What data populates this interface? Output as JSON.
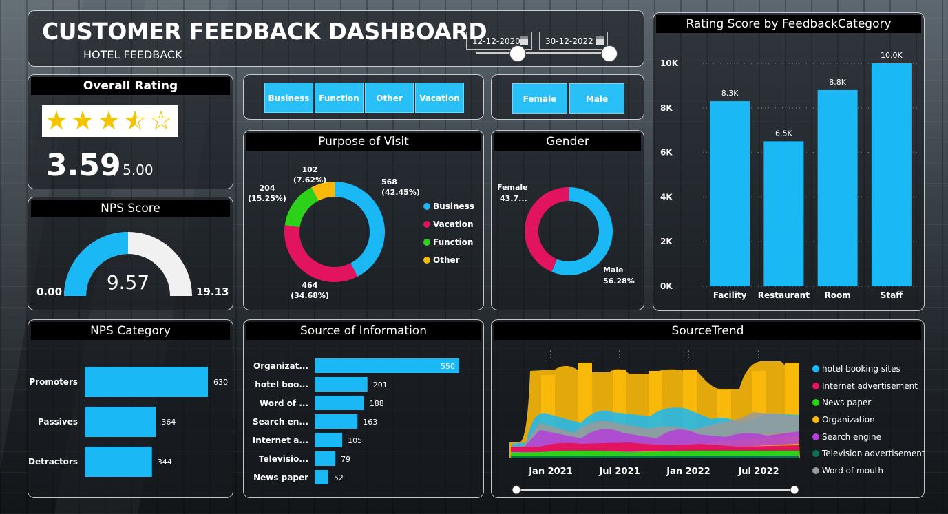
{
  "header": {
    "title": "CUSTOMER FEEDBACK DASHBOARD",
    "subtitle": "HOTEL FEEDBACK",
    "date_start": "12-12-2020",
    "date_end": "30-12-2022"
  },
  "purpose_slicer": [
    "Business",
    "Function",
    "Other",
    "Vacation"
  ],
  "gender_slicer": [
    "Female",
    "Male"
  ],
  "overall_rating": {
    "title": "Overall Rating",
    "value": "3.59",
    "max": "/ 5.00",
    "stars": 3.59
  },
  "nps_score": {
    "title": "NPS Score",
    "value": "9.57",
    "min": "0.00",
    "max": "19.13",
    "fraction": 0.5
  },
  "purpose": {
    "title": "Purpose of Visit",
    "slices": [
      {
        "name": "Business",
        "value": 568,
        "label": "568",
        "pct": "(42.45%)",
        "color": "#1ab8f5"
      },
      {
        "name": "Vacation",
        "value": 464,
        "label": "464",
        "pct": "(34.68%)",
        "color": "#e3145f"
      },
      {
        "name": "Function",
        "value": 204,
        "label": "204",
        "pct": "(15.25%)",
        "color": "#2ed11a"
      },
      {
        "name": "Other",
        "value": 102,
        "label": "102",
        "pct": "(7.62%)",
        "color": "#f9b90a"
      }
    ]
  },
  "gender": {
    "title": "Gender",
    "slices": [
      {
        "name": "Male",
        "value": 56.28,
        "label": "Male",
        "pct": "56.28%",
        "color": "#1ab8f5"
      },
      {
        "name": "Female",
        "value": 43.72,
        "label": "Female",
        "pct": "43.7...",
        "color": "#e3145f"
      }
    ]
  },
  "rating_by_category": {
    "title": "Rating Score by FeedbackCategory",
    "chart_data": {
      "type": "bar",
      "categories": [
        "Facility",
        "Restaurant",
        "Room",
        "Staff"
      ],
      "values": [
        8300,
        6500,
        8800,
        10000
      ],
      "labels": [
        "8.3K",
        "6.5K",
        "8.8K",
        "10.0K"
      ],
      "yticks": [
        "0K",
        "2K",
        "4K",
        "6K",
        "8K",
        "10K"
      ],
      "ylim": [
        0,
        10000
      ],
      "color": "#1ab8f5"
    }
  },
  "nps_category": {
    "title": "NPS Category",
    "chart_data": {
      "type": "bar",
      "categories": [
        "Promoters",
        "Passives",
        "Detractors"
      ],
      "values": [
        630,
        364,
        344
      ],
      "color": "#1ab8f5"
    }
  },
  "source_info": {
    "title": "Source of Information",
    "chart_data": {
      "type": "bar",
      "categories": [
        "Organizat...",
        "hotel boo...",
        "Word of ...",
        "Search en...",
        "Internet a...",
        "Televisio...",
        "News paper"
      ],
      "values": [
        550,
        201,
        188,
        163,
        105,
        79,
        52
      ],
      "color": "#1ab8f5"
    }
  },
  "source_trend": {
    "title": "SourceTrend",
    "legend": [
      {
        "name": "hotel booking sites",
        "color": "#1ab8f5"
      },
      {
        "name": "Internet advertisement",
        "color": "#e3145f"
      },
      {
        "name": "News paper",
        "color": "#2ed11a"
      },
      {
        "name": "Organization",
        "color": "#f9b90a"
      },
      {
        "name": "Search engine",
        "color": "#b43ed8"
      },
      {
        "name": "Television advertisement",
        "color": "#0e6e50"
      },
      {
        "name": "Word of mouth",
        "color": "#9a9a9a"
      }
    ],
    "xticks": [
      "Jan 2021",
      "Jul 2021",
      "Jan 2022",
      "Jul 2022"
    ]
  }
}
